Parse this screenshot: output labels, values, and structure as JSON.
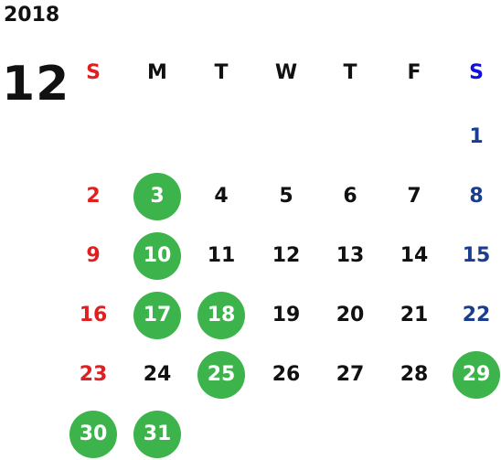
{
  "calendar": {
    "year": "2018",
    "month": "12",
    "weekdays": [
      "S",
      "M",
      "T",
      "W",
      "T",
      "F",
      "S"
    ],
    "weeks": [
      [
        "",
        "",
        "",
        "",
        "",
        "",
        "1"
      ],
      [
        "2",
        "3",
        "4",
        "5",
        "6",
        "7",
        "8"
      ],
      [
        "9",
        "10",
        "11",
        "12",
        "13",
        "14",
        "15"
      ],
      [
        "16",
        "17",
        "18",
        "19",
        "20",
        "21",
        "22"
      ],
      [
        "23",
        "24",
        "25",
        "26",
        "27",
        "28",
        "29"
      ],
      [
        "30",
        "31",
        "",
        "",
        "",
        "",
        ""
      ]
    ],
    "marked_days": [
      "3",
      "10",
      "17",
      "18",
      "25",
      "29",
      "30",
      "31"
    ]
  },
  "colors": {
    "sunday": "#e02020",
    "saturday": "#1a3d8f",
    "saturday_header": "#1010e0",
    "weekday": "#111111",
    "marked_bg": "#3cb44b",
    "marked_text": "#ffffff"
  }
}
